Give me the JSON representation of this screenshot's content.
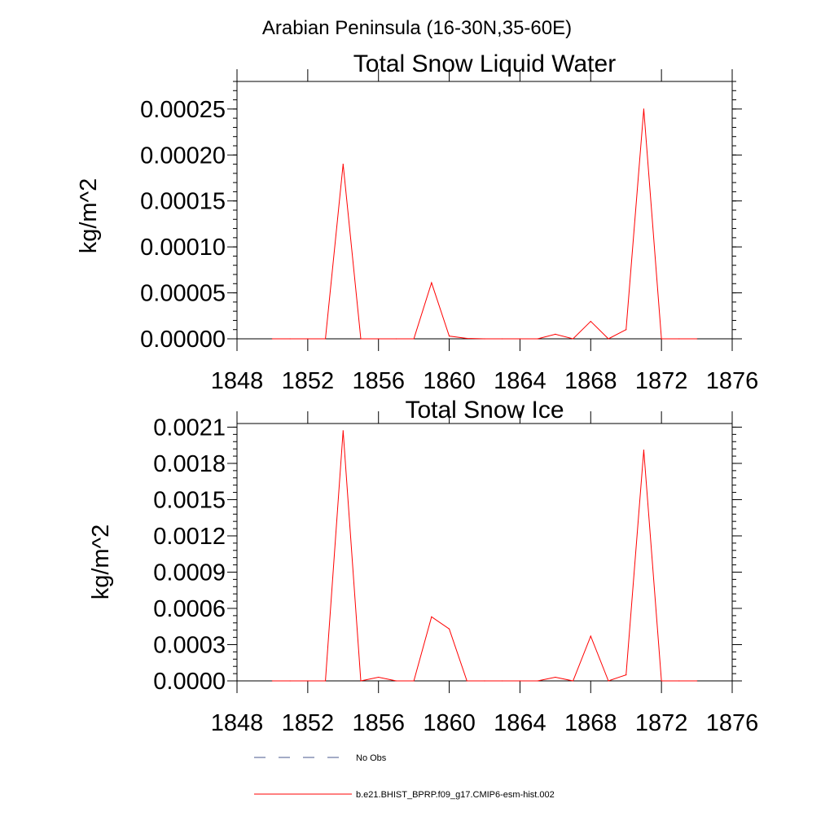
{
  "page_title": "Arabian Peninsula (16-30N,35-60E)",
  "chart_data": [
    {
      "type": "line",
      "title": "Total Snow Liquid Water",
      "xlabel": "",
      "ylabel": "kg/m^2",
      "xlim": [
        1848,
        1876
      ],
      "ylim": [
        0,
        0.00028
      ],
      "x_ticks": [
        "1848",
        "1852",
        "1856",
        "1860",
        "1864",
        "1868",
        "1872",
        "1876"
      ],
      "y_ticks": [
        "0.00000",
        "0.00005",
        "0.00010",
        "0.00015",
        "0.00020",
        "0.00025"
      ],
      "y_tick_values": [
        0,
        5e-05,
        0.0001,
        0.00015,
        0.0002,
        0.00025
      ],
      "zero_line": true,
      "series": [
        {
          "name": "b.e21.BHIST_BPRP.f09_g17.CMIP6-esm-hist.002",
          "color": "#ff0000",
          "x": [
            1850,
            1851,
            1852,
            1853,
            1854,
            1855,
            1856,
            1857,
            1858,
            1859,
            1860,
            1861,
            1862,
            1863,
            1864,
            1865,
            1866,
            1867,
            1868,
            1869,
            1870,
            1871,
            1872,
            1873,
            1874
          ],
          "values": [
            0,
            0,
            0,
            0,
            0.00019,
            0,
            0,
            0,
            0,
            6.1e-05,
            3e-06,
            5e-07,
            0,
            0,
            0,
            0,
            5e-06,
            0,
            1.9e-05,
            0,
            1e-05,
            0.00025,
            0,
            0,
            0
          ]
        }
      ]
    },
    {
      "type": "line",
      "title": "Total Snow Ice",
      "xlabel": "",
      "ylabel": "kg/m^2",
      "xlim": [
        1848,
        1876
      ],
      "ylim": [
        0,
        0.00213
      ],
      "x_ticks": [
        "1848",
        "1852",
        "1856",
        "1860",
        "1864",
        "1868",
        "1872",
        "1876"
      ],
      "y_ticks": [
        "0.0000",
        "0.0003",
        "0.0006",
        "0.0009",
        "0.0012",
        "0.0015",
        "0.0018",
        "0.0021"
      ],
      "y_tick_values": [
        0,
        0.0003,
        0.0006,
        0.0009,
        0.0012,
        0.0015,
        0.0018,
        0.0021
      ],
      "zero_line": true,
      "series": [
        {
          "name": "b.e21.BHIST_BPRP.f09_g17.CMIP6-esm-hist.002",
          "color": "#ff0000",
          "x": [
            1850,
            1851,
            1852,
            1853,
            1854,
            1855,
            1856,
            1857,
            1858,
            1859,
            1860,
            1861,
            1862,
            1863,
            1864,
            1865,
            1866,
            1867,
            1868,
            1869,
            1870,
            1871,
            1872,
            1873,
            1874
          ],
          "values": [
            0,
            0,
            0,
            0,
            0.00207,
            0,
            3e-05,
            0,
            0,
            0.00053,
            0.00043,
            0,
            0,
            0,
            0,
            0,
            3e-05,
            0,
            0.00037,
            0,
            5e-05,
            0.00191,
            0,
            0,
            0
          ]
        }
      ]
    }
  ],
  "legend": [
    {
      "label": "No Obs",
      "color": "#4a5a8c",
      "style": "dashed"
    },
    {
      "label": "b.e21.BHIST_BPRP.f09_g17.CMIP6-esm-hist.002",
      "color": "#ff0000",
      "style": "solid"
    }
  ]
}
